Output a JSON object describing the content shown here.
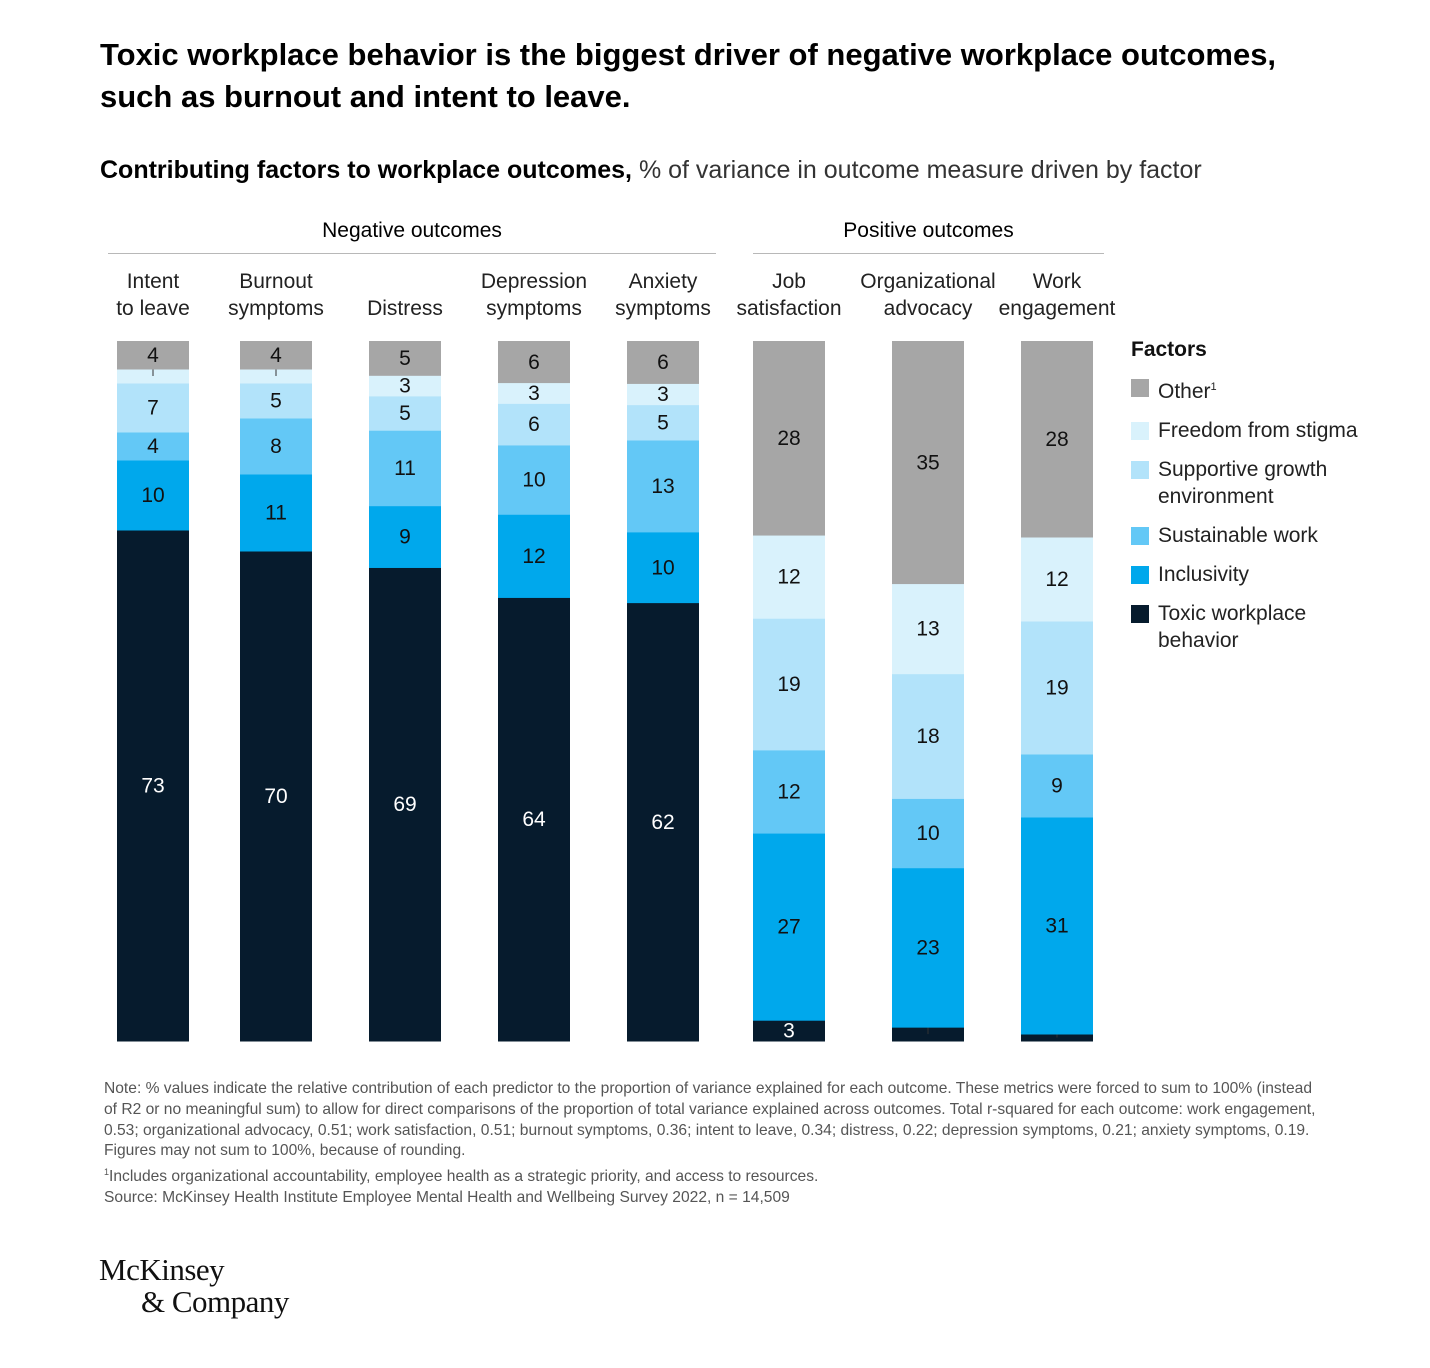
{
  "title": "Toxic workplace behavior is the biggest driver of negative workplace outcomes, such as burnout and intent to leave.",
  "subtitle": {
    "bold": "Contributing factors to workplace outcomes,",
    "light": "% of variance in outcome measure driven by factor"
  },
  "groups": {
    "negative": "Negative outcomes",
    "positive": "Positive outcomes"
  },
  "outcome_labels": [
    "Intent\nto leave",
    "Burnout\nsymptoms",
    "Distress",
    "Depression\nsymptoms",
    "Anxiety\nsymptoms",
    "Job\nsatisfaction",
    "Organizational\nadvocacy",
    "Work\nengagement"
  ],
  "legend": {
    "title": "Factors",
    "items": [
      {
        "label": "Other",
        "sup": "1"
      },
      {
        "label": "Freedom from stigma"
      },
      {
        "label": "Supportive growth\nenvironment"
      },
      {
        "label": "Sustainable work"
      },
      {
        "label": "Inclusivity"
      },
      {
        "label": "Toxic workplace\nbehavior"
      }
    ]
  },
  "colors": {
    "other": "#a6a6a6",
    "stigma": "#d9f2fc",
    "growth": "#b2e3fa",
    "sustainable": "#63c8f6",
    "inclusivity": "#00a8ec",
    "toxic": "#061b2d"
  },
  "chart_data": {
    "type": "bar",
    "stacked": true,
    "categories": [
      "Intent to leave",
      "Burnout symptoms",
      "Distress",
      "Depression symptoms",
      "Anxiety symptoms",
      "Job satisfaction",
      "Organizational advocacy",
      "Work engagement"
    ],
    "series": [
      {
        "name": "Toxic workplace behavior",
        "color": "#061b2d",
        "values": [
          73,
          70,
          69,
          64,
          62,
          3,
          2,
          1
        ]
      },
      {
        "name": "Inclusivity",
        "color": "#00a8ec",
        "values": [
          10,
          11,
          9,
          12,
          10,
          27,
          23,
          31
        ]
      },
      {
        "name": "Sustainable work",
        "color": "#63c8f6",
        "values": [
          4,
          8,
          11,
          10,
          13,
          12,
          10,
          9
        ]
      },
      {
        "name": "Supportive growth environment",
        "color": "#b2e3fa",
        "values": [
          7,
          5,
          5,
          6,
          5,
          19,
          18,
          19
        ]
      },
      {
        "name": "Freedom from stigma",
        "color": "#d9f2fc",
        "values": [
          2,
          2,
          3,
          3,
          3,
          12,
          13,
          12
        ]
      },
      {
        "name": "Other",
        "color": "#a6a6a6",
        "values": [
          4,
          4,
          5,
          6,
          6,
          28,
          35,
          28
        ]
      }
    ]
  },
  "notes": [
    "Note: % values indicate the relative contribution of each predictor to the proportion of variance explained for each outcome. These metrics were forced to sum to 100% (instead of R2 or no meaningful sum) to allow for direct comparisons of the proportion of total variance explained across outcomes. Total r-squared for each outcome: work engagement, 0.53; organizational advocacy, 0.51; work satisfaction, 0.51; burnout symptoms, 0.36; intent to leave, 0.34; distress, 0.22; depression symptoms, 0.21; anxiety symptoms, 0.19. Figures may not sum to 100%, because of rounding.",
    "Includes organizational accountability, employee health as a strategic priority, and access to resources.",
    "Source: McKinsey Health Institute Employee Mental Health and Wellbeing Survey 2022, n = 14,509"
  ],
  "note_sup": "1",
  "logo": {
    "line1": "McKinsey",
    "line2": "& Company"
  }
}
